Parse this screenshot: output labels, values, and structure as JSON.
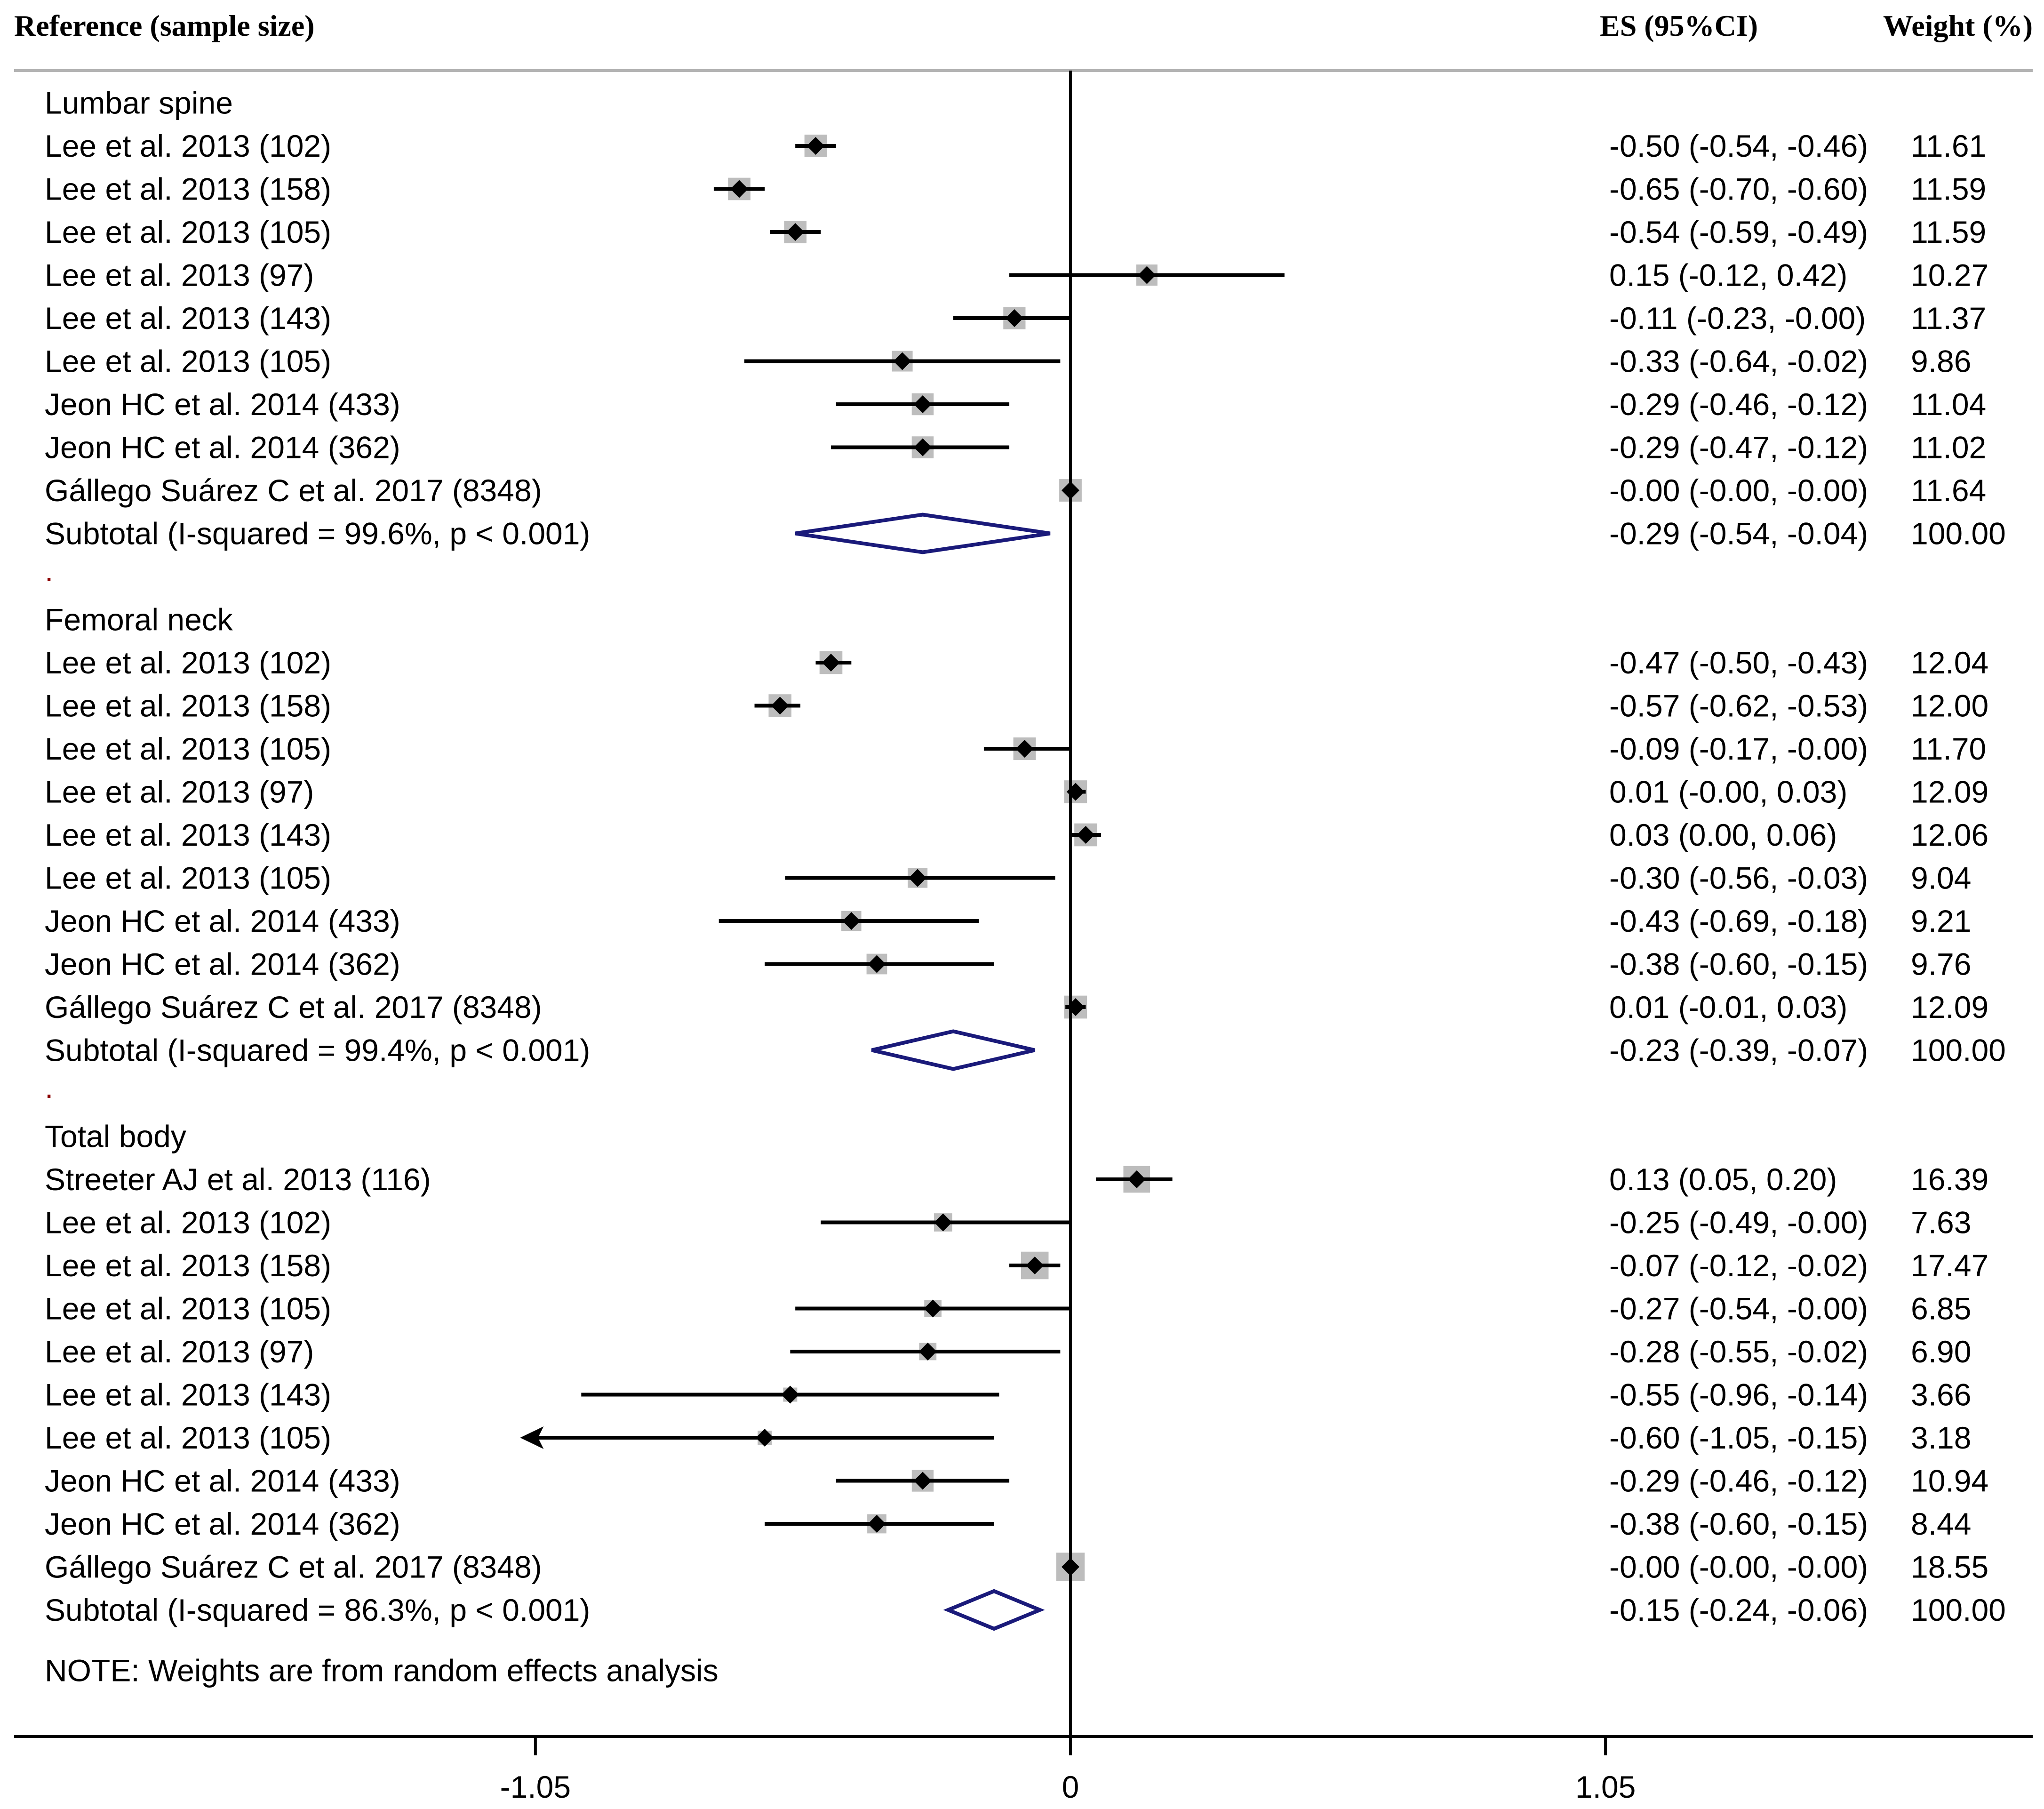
{
  "chart_data": {
    "type": "forest",
    "headers": {
      "reference": "Reference (sample size)",
      "es": "ES (95%CI)",
      "weight": "Weight (%)"
    },
    "axis": {
      "ticks": [
        {
          "value": -1.05,
          "label": "-1.05"
        },
        {
          "value": 0,
          "label": "0"
        },
        {
          "value": 1.05,
          "label": "1.05"
        }
      ],
      "xlim": [
        -2.15,
        1.98
      ],
      "null_line": 0
    },
    "groups": [
      {
        "title": "Lumbar spine",
        "studies": [
          {
            "label": "Lee et al. 2013 (102)",
            "es": -0.5,
            "lo": -0.54,
            "hi": -0.46,
            "ci_text": "-0.50 (-0.54, -0.46)",
            "weight": "11.61"
          },
          {
            "label": "Lee et al. 2013 (158)",
            "es": -0.65,
            "lo": -0.7,
            "hi": -0.6,
            "ci_text": "-0.65 (-0.70, -0.60)",
            "weight": "11.59"
          },
          {
            "label": "Lee et al. 2013 (105)",
            "es": -0.54,
            "lo": -0.59,
            "hi": -0.49,
            "ci_text": "-0.54 (-0.59, -0.49)",
            "weight": "11.59"
          },
          {
            "label": "Lee et al. 2013 (97)",
            "es": 0.15,
            "lo": -0.12,
            "hi": 0.42,
            "ci_text": "0.15 (-0.12, 0.42)",
            "weight": "10.27"
          },
          {
            "label": "Lee et al. 2013 (143)",
            "es": -0.11,
            "lo": -0.23,
            "hi": -0.0,
            "ci_text": "-0.11 (-0.23, -0.00)",
            "weight": "11.37"
          },
          {
            "label": "Lee et al. 2013 (105)",
            "es": -0.33,
            "lo": -0.64,
            "hi": -0.02,
            "ci_text": "-0.33 (-0.64, -0.02)",
            "weight": "9.86"
          },
          {
            "label": "Jeon HC et al. 2014 (433)",
            "es": -0.29,
            "lo": -0.46,
            "hi": -0.12,
            "ci_text": "-0.29 (-0.46, -0.12)",
            "weight": "11.04"
          },
          {
            "label": "Jeon HC et al. 2014 (362)",
            "es": -0.29,
            "lo": -0.47,
            "hi": -0.12,
            "ci_text": "-0.29 (-0.47, -0.12)",
            "weight": "11.02"
          },
          {
            "label": "Gállego Suárez C et al. 2017 (8348)",
            "es": -0.0,
            "lo": -0.0,
            "hi": -0.0,
            "ci_text": "-0.00 (-0.00, -0.00)",
            "weight": "11.64"
          }
        ],
        "subtotal": {
          "label": "Subtotal  (I-squared = 99.6%, p < 0.001)",
          "es": -0.29,
          "lo": -0.54,
          "hi": -0.04,
          "ci_text": "-0.29 (-0.54, -0.04)",
          "weight": "100.00"
        }
      },
      {
        "title": "Femoral neck",
        "studies": [
          {
            "label": "Lee et al. 2013 (102)",
            "es": -0.47,
            "lo": -0.5,
            "hi": -0.43,
            "ci_text": "-0.47 (-0.50, -0.43)",
            "weight": "12.04"
          },
          {
            "label": "Lee et al. 2013 (158)",
            "es": -0.57,
            "lo": -0.62,
            "hi": -0.53,
            "ci_text": "-0.57 (-0.62, -0.53)",
            "weight": "12.00"
          },
          {
            "label": "Lee et al. 2013 (105)",
            "es": -0.09,
            "lo": -0.17,
            "hi": -0.0,
            "ci_text": "-0.09 (-0.17, -0.00)",
            "weight": "11.70"
          },
          {
            "label": "Lee et al. 2013 (97)",
            "es": 0.01,
            "lo": -0.0,
            "hi": 0.03,
            "ci_text": "0.01 (-0.00, 0.03)",
            "weight": "12.09"
          },
          {
            "label": "Lee et al. 2013 (143)",
            "es": 0.03,
            "lo": 0.0,
            "hi": 0.06,
            "ci_text": "0.03 (0.00, 0.06)",
            "weight": "12.06"
          },
          {
            "label": "Lee et al. 2013 (105)",
            "es": -0.3,
            "lo": -0.56,
            "hi": -0.03,
            "ci_text": "-0.30 (-0.56, -0.03)",
            "weight": "9.04"
          },
          {
            "label": "Jeon HC et al. 2014 (433)",
            "es": -0.43,
            "lo": -0.69,
            "hi": -0.18,
            "ci_text": "-0.43 (-0.69, -0.18)",
            "weight": "9.21"
          },
          {
            "label": "Jeon HC et al. 2014 (362)",
            "es": -0.38,
            "lo": -0.6,
            "hi": -0.15,
            "ci_text": "-0.38 (-0.60, -0.15)",
            "weight": "9.76"
          },
          {
            "label": "Gállego Suárez C et al. 2017 (8348)",
            "es": 0.01,
            "lo": -0.01,
            "hi": 0.03,
            "ci_text": "0.01 (-0.01, 0.03)",
            "weight": "12.09"
          }
        ],
        "subtotal": {
          "label": "Subtotal  (I-squared = 99.4%, p < 0.001)",
          "es": -0.23,
          "lo": -0.39,
          "hi": -0.07,
          "ci_text": "-0.23 (-0.39, -0.07)",
          "weight": "100.00"
        }
      },
      {
        "title": "Total body",
        "studies": [
          {
            "label": "Streeter AJ et al. 2013 (116)",
            "es": 0.13,
            "lo": 0.05,
            "hi": 0.2,
            "ci_text": "0.13 (0.05, 0.20)",
            "weight": "16.39"
          },
          {
            "label": "Lee et al. 2013 (102)",
            "es": -0.25,
            "lo": -0.49,
            "hi": -0.0,
            "ci_text": "-0.25 (-0.49, -0.00)",
            "weight": "7.63"
          },
          {
            "label": "Lee et al. 2013 (158)",
            "es": -0.07,
            "lo": -0.12,
            "hi": -0.02,
            "ci_text": "-0.07 (-0.12, -0.02)",
            "weight": "17.47"
          },
          {
            "label": "Lee et al. 2013 (105)",
            "es": -0.27,
            "lo": -0.54,
            "hi": -0.0,
            "ci_text": "-0.27 (-0.54, -0.00)",
            "weight": "6.85"
          },
          {
            "label": "Lee et al. 2013 (97)",
            "es": -0.28,
            "lo": -0.55,
            "hi": -0.02,
            "ci_text": "-0.28 (-0.55, -0.02)",
            "weight": "6.90"
          },
          {
            "label": "Lee et al. 2013 (143)",
            "es": -0.55,
            "lo": -0.96,
            "hi": -0.14,
            "ci_text": "-0.55 (-0.96, -0.14)",
            "weight": "3.66"
          },
          {
            "label": "Lee et al. 2013 (105)",
            "es": -0.6,
            "lo": -1.05,
            "hi": -0.15,
            "ci_text": "-0.60 (-1.05, -0.15)",
            "weight": "3.18",
            "arrow_left": true
          },
          {
            "label": "Jeon HC et al. 2014 (433)",
            "es": -0.29,
            "lo": -0.46,
            "hi": -0.12,
            "ci_text": "-0.29 (-0.46, -0.12)",
            "weight": "10.94"
          },
          {
            "label": "Jeon HC et al. 2014 (362)",
            "es": -0.38,
            "lo": -0.6,
            "hi": -0.15,
            "ci_text": "-0.38 (-0.60, -0.15)",
            "weight": "8.44"
          },
          {
            "label": "Gállego Suárez C et al. 2017 (8348)",
            "es": -0.0,
            "lo": -0.0,
            "hi": -0.0,
            "ci_text": "-0.00 (-0.00, -0.00)",
            "weight": "18.55"
          }
        ],
        "subtotal": {
          "label": "Subtotal  (I-squared = 86.3%, p < 0.001)",
          "es": -0.15,
          "lo": -0.24,
          "hi": -0.06,
          "ci_text": "-0.15 (-0.24, -0.06)",
          "weight": "100.00"
        }
      }
    ],
    "separator_mark": ".",
    "note": "NOTE: Weights are from random effects analysis",
    "colors": {
      "diamond": "#1a1a7a",
      "box": "#bdbdbd",
      "line": "#000000"
    }
  }
}
